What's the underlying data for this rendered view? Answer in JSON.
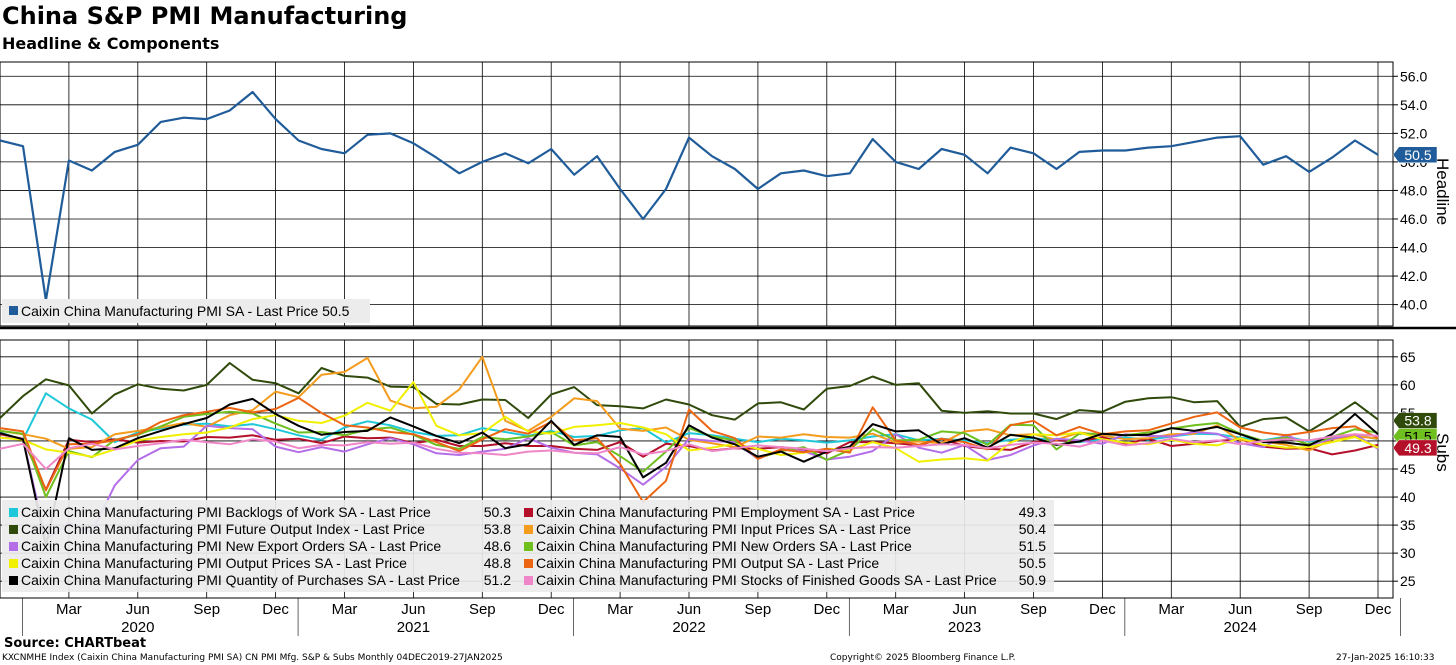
{
  "header": {
    "title": "China S&P PMI Manufacturing",
    "subtitle": "Headline & Components"
  },
  "footer": {
    "source": "Source: CHARTbeat",
    "index_info": "KXCNMHE Index (Caixin China Manufacturing PMI SA) CN PMI Mfg. S&P & Subs  Monthly 04DEC2019-27JAN2025",
    "copyright": "Copyright© 2025 Bloomberg Finance L.P.",
    "timestamp": "27-Jan-2025 16:10:33"
  },
  "colors": {
    "headline": "#1f5c99",
    "grid": "#000000",
    "legend_bg": "#ececec"
  },
  "chart_data": [
    {
      "type": "line",
      "panel": "Headline",
      "ylabel": "Headline",
      "ylim": [
        38.5,
        57
      ],
      "yticks": [
        "56.0",
        "54.0",
        "52.0",
        "50.0",
        "48.0",
        "46.0",
        "44.0",
        "42.0",
        "40.0"
      ],
      "x_start": "2019-12",
      "months": 61,
      "series": [
        {
          "name": "Caixin China Manufacturing PMI SA - Last Price 50.5",
          "color": "#1f5c99",
          "last": "50.5",
          "values": [
            51.5,
            51.1,
            40.3,
            50.1,
            49.4,
            50.7,
            51.2,
            52.8,
            53.1,
            53.0,
            53.6,
            54.9,
            53.0,
            51.5,
            50.9,
            50.6,
            51.9,
            52.0,
            51.3,
            50.3,
            49.2,
            50.0,
            50.6,
            49.9,
            50.9,
            49.1,
            50.4,
            48.1,
            46.0,
            48.1,
            51.7,
            50.4,
            49.5,
            48.1,
            49.2,
            49.4,
            49.0,
            49.2,
            51.6,
            50.0,
            49.5,
            50.9,
            50.5,
            49.2,
            51.0,
            50.6,
            49.5,
            50.7,
            50.8,
            50.8,
            51.0,
            51.1,
            51.4,
            51.7,
            51.8,
            49.8,
            50.4,
            49.3,
            50.3,
            51.5,
            50.5
          ]
        }
      ]
    },
    {
      "type": "line",
      "panel": "Subs",
      "ylabel": "Subs",
      "ylim": [
        22,
        68
      ],
      "yticks": [
        "65",
        "60",
        "55",
        "50",
        "45",
        "40",
        "35",
        "30",
        "25"
      ],
      "x_start": "2019-12",
      "months": 61,
      "series": [
        {
          "name": "Caixin China Manufacturing PMI Backlogs of Work SA - Last Price",
          "last": "50.3",
          "color": "#1ec8d8",
          "values": [
            51.5,
            50.2,
            58.5,
            55.8,
            53.8,
            49.8,
            51.5,
            52.2,
            52.9,
            53.1,
            52.6,
            53.0,
            52.1,
            51.0,
            50.2,
            52.4,
            53.5,
            52.8,
            51.6,
            50.9,
            51.0,
            52.3,
            51.6,
            50.9,
            51.8,
            50.7,
            50.9,
            51.9,
            52.3,
            49.7,
            51.4,
            51.0,
            50.4,
            49.8,
            50.4,
            50.1,
            49.7,
            50.1,
            50.8,
            51.2,
            50.1,
            50.4,
            50.1,
            49.6,
            50.2,
            50.5,
            50.1,
            49.8,
            50.3,
            50.6,
            50.2,
            50.8,
            51.3,
            51.2,
            50.6,
            50.1,
            50.8,
            49.9,
            50.5,
            51.1,
            50.3
          ]
        },
        {
          "name": "Caixin China Manufacturing PMI Employment SA - Last Price",
          "last": "49.3",
          "color": "#b4102a",
          "values": [
            51.2,
            50.4,
            41.3,
            50.2,
            49.8,
            50.3,
            49.7,
            50.0,
            49.9,
            50.7,
            50.6,
            51.0,
            50.2,
            50.4,
            49.6,
            50.8,
            50.5,
            50.6,
            49.6,
            50.2,
            49.1,
            49.1,
            49.6,
            49.1,
            49.1,
            48.6,
            48.4,
            49.8,
            47.2,
            49.5,
            49.1,
            48.3,
            48.7,
            48.6,
            48.9,
            48.5,
            47.8,
            49.8,
            49.8,
            49.6,
            49.2,
            50.4,
            49.1,
            48.6,
            48.4,
            49.8,
            50.1,
            49.9,
            50.7,
            49.5,
            50.4,
            49.1,
            49.5,
            50.0,
            50.3,
            49.0,
            48.6,
            48.7,
            47.6,
            48.3,
            49.3
          ]
        },
        {
          "name": "Caixin China Manufacturing PMI Future Output Index - Last Price",
          "last": "53.8",
          "color": "#2f4a0a",
          "values": [
            54.1,
            58.0,
            61.0,
            59.9,
            54.9,
            58.3,
            60.1,
            59.3,
            59.0,
            60.0,
            63.9,
            60.9,
            60.3,
            58.5,
            63.0,
            61.6,
            61.3,
            59.7,
            59.6,
            56.6,
            56.5,
            57.4,
            57.3,
            54.1,
            58.3,
            59.6,
            56.4,
            56.2,
            55.8,
            57.4,
            56.5,
            54.6,
            53.8,
            56.7,
            56.9,
            55.6,
            59.3,
            59.8,
            61.5,
            60.0,
            60.3,
            55.4,
            55.0,
            55.3,
            54.9,
            54.9,
            53.9,
            55.5,
            55.2,
            57.0,
            57.6,
            57.8,
            56.9,
            57.1,
            52.5,
            53.9,
            54.2,
            51.7,
            54.2,
            56.9,
            53.8
          ]
        },
        {
          "name": "Caixin China Manufacturing PMI Input Prices SA - Last Price",
          "last": "50.4",
          "color": "#f39c1e",
          "values": [
            51.8,
            51.2,
            50.4,
            48.6,
            48.9,
            51.2,
            51.8,
            52.4,
            53.2,
            52.5,
            54.6,
            55.5,
            58.8,
            57.8,
            61.8,
            62.3,
            64.8,
            57.2,
            55.8,
            56.1,
            59.2,
            65.0,
            53.6,
            51.8,
            54.3,
            57.6,
            57.1,
            52.2,
            51.8,
            52.4,
            50.2,
            49.6,
            48.9,
            50.8,
            50.6,
            51.2,
            50.7,
            50.6,
            51.3,
            49.7,
            49.9,
            49.6,
            51.7,
            52.1,
            51.0,
            51.2,
            50.2,
            51.5,
            51.0,
            50.3,
            50.5,
            51.2,
            51.3,
            52.8,
            50.1,
            49.9,
            49.3,
            48.3,
            50.3,
            50.9,
            50.4
          ]
        },
        {
          "name": "Caixin China Manufacturing PMI New Export Orders SA - Last Price",
          "last": "48.6",
          "color": "#b36ee8",
          "values": [
            50.6,
            50.4,
            32.4,
            35.4,
            33.7,
            42.1,
            46.6,
            48.7,
            49.0,
            52.7,
            52.3,
            52.1,
            49.0,
            48.0,
            48.9,
            48.1,
            49.4,
            50.5,
            49.4,
            47.8,
            47.5,
            48.1,
            48.6,
            50.5,
            48.8,
            47.9,
            47.6,
            45.1,
            42.2,
            45.4,
            50.4,
            50.0,
            49.8,
            46.8,
            48.5,
            48.2,
            46.7,
            47.2,
            48.2,
            51.2,
            48.8,
            47.9,
            49.3,
            46.6,
            47.5,
            49.2,
            50.4,
            50.1,
            49.5,
            51.2,
            50.9,
            50.8,
            51.6,
            51.3,
            49.6,
            48.9,
            51.1,
            49.2,
            50.4,
            51.2,
            48.6
          ]
        },
        {
          "name": "Caixin China Manufacturing PMI New Orders SA - Last Price",
          "last": "51.5",
          "color": "#6fbf1e",
          "values": [
            51.8,
            51.3,
            40.0,
            48.2,
            47.1,
            50.2,
            51.1,
            52.6,
            54.3,
            54.8,
            55.2,
            54.9,
            53.1,
            51.5,
            51.6,
            51.0,
            52.0,
            52.4,
            51.1,
            49.3,
            48.6,
            50.7,
            50.3,
            50.8,
            51.6,
            49.2,
            49.8,
            47.3,
            44.5,
            48.1,
            52.3,
            50.8,
            50.1,
            46.9,
            48.2,
            48.9,
            46.6,
            48.4,
            52.1,
            50.1,
            50.2,
            51.7,
            51.4,
            49.3,
            52.9,
            52.8,
            48.5,
            51.3,
            51.3,
            51.0,
            51.5,
            52.2,
            52.8,
            53.2,
            51.3,
            50.0,
            50.6,
            49.4,
            50.7,
            52.1,
            51.5
          ]
        },
        {
          "name": "Caixin China Manufacturing PMI Output Prices SA - Last Price",
          "last": "48.8",
          "color": "#f0f000",
          "values": [
            50.6,
            50.2,
            48.5,
            47.9,
            47.2,
            48.5,
            50.1,
            50.7,
            51.2,
            51.5,
            52.4,
            53.9,
            54.6,
            53.6,
            53.2,
            54.5,
            56.8,
            55.4,
            60.5,
            52.7,
            51.0,
            51.4,
            54.3,
            51.7,
            51.3,
            52.5,
            52.8,
            53.2,
            52.4,
            51.2,
            48.3,
            48.8,
            49.5,
            48.6,
            47.5,
            47.9,
            48.6,
            48.4,
            49.8,
            48.7,
            46.3,
            46.7,
            46.9,
            46.5,
            49.7,
            51.2,
            51.0,
            51.5,
            50.3,
            49.7,
            49.4,
            50.2,
            49.5,
            49.2,
            50.5,
            49.3,
            48.8,
            48.9,
            49.8,
            50.7,
            48.8
          ]
        },
        {
          "name": "Caixin China Manufacturing PMI Output SA - Last Price",
          "last": "50.5",
          "color": "#ec6512",
          "values": [
            52.3,
            51.7,
            41.2,
            49.4,
            49.5,
            50.1,
            51.2,
            53.4,
            54.6,
            55.2,
            55.9,
            55.1,
            55.7,
            57.7,
            55.0,
            52.8,
            52.4,
            51.6,
            51.2,
            49.8,
            48.2,
            50.3,
            52.1,
            51.3,
            53.4,
            50.1,
            50.5,
            45.9,
            39.1,
            42.9,
            55.6,
            51.8,
            50.5,
            46.8,
            48.5,
            48.0,
            48.6,
            47.9,
            56.0,
            50.1,
            49.3,
            50.4,
            49.8,
            48.5,
            52.8,
            53.6,
            51.0,
            52.5,
            51.2,
            51.7,
            51.9,
            53.1,
            54.3,
            55.1,
            52.4,
            51.5,
            51.0,
            51.6,
            52.3,
            52.6,
            50.5
          ]
        },
        {
          "name": "Caixin China Manufacturing PMI Quantity of Purchases SA - Last Price",
          "last": "51.2",
          "color": "#000000",
          "values": [
            51.4,
            50.3,
            31.2,
            50.5,
            48.4,
            48.7,
            50.5,
            51.8,
            53.0,
            54.1,
            56.5,
            57.5,
            54.8,
            52.7,
            51.1,
            51.6,
            51.8,
            54.2,
            52.6,
            50.9,
            49.6,
            51.5,
            48.7,
            49.4,
            53.6,
            49.3,
            51.0,
            50.7,
            43.5,
            46.1,
            52.8,
            50.6,
            49.4,
            47.2,
            48.1,
            46.3,
            48.1,
            49.0,
            53.0,
            51.7,
            51.9,
            49.4,
            50.5,
            48.8,
            51.1,
            50.6,
            49.3,
            49.9,
            51.3,
            51.0,
            51.1,
            52.3,
            51.8,
            52.5,
            51.2,
            49.8,
            49.7,
            49.2,
            51.2,
            54.8,
            51.2
          ]
        },
        {
          "name": "Caixin China Manufacturing PMI Stocks of Finished Goods SA - Last Price",
          "last": "50.9",
          "color": "#ef86c8",
          "values": [
            48.6,
            49.5,
            45.0,
            48.7,
            49.5,
            48.5,
            49.1,
            49.6,
            50.2,
            49.8,
            49.4,
            50.3,
            49.9,
            48.7,
            49.3,
            49.2,
            49.8,
            49.5,
            49.7,
            48.6,
            47.9,
            47.8,
            47.5,
            48.1,
            48.3,
            47.9,
            47.8,
            48.9,
            47.6,
            48.2,
            49.4,
            48.2,
            48.7,
            49.2,
            48.9,
            48.6,
            48.2,
            48.7,
            48.9,
            48.8,
            49.1,
            49.4,
            49.3,
            48.7,
            49.3,
            49.7,
            49.5,
            49.0,
            50.1,
            49.2,
            49.6,
            50.4,
            49.8,
            50.1,
            49.4,
            50.0,
            50.3,
            50.1,
            50.8,
            51.2,
            50.9
          ]
        }
      ]
    }
  ],
  "x_axis": {
    "month_labels": [
      {
        "i": 3,
        "label": "Mar"
      },
      {
        "i": 6,
        "label": "Jun"
      },
      {
        "i": 9,
        "label": "Sep"
      },
      {
        "i": 12,
        "label": "Dec"
      },
      {
        "i": 15,
        "label": "Mar"
      },
      {
        "i": 18,
        "label": "Jun"
      },
      {
        "i": 21,
        "label": "Sep"
      },
      {
        "i": 24,
        "label": "Dec"
      },
      {
        "i": 27,
        "label": "Mar"
      },
      {
        "i": 30,
        "label": "Jun"
      },
      {
        "i": 33,
        "label": "Sep"
      },
      {
        "i": 36,
        "label": "Dec"
      },
      {
        "i": 39,
        "label": "Mar"
      },
      {
        "i": 42,
        "label": "Jun"
      },
      {
        "i": 45,
        "label": "Sep"
      },
      {
        "i": 48,
        "label": "Dec"
      },
      {
        "i": 51,
        "label": "Mar"
      },
      {
        "i": 54,
        "label": "Jun"
      },
      {
        "i": 57,
        "label": "Sep"
      },
      {
        "i": 60,
        "label": "Dec"
      }
    ],
    "year_labels": [
      {
        "i": 6,
        "label": "2020"
      },
      {
        "i": 18,
        "label": "2021"
      },
      {
        "i": 30,
        "label": "2022"
      },
      {
        "i": 42,
        "label": "2023"
      },
      {
        "i": 54,
        "label": "2024"
      }
    ]
  }
}
